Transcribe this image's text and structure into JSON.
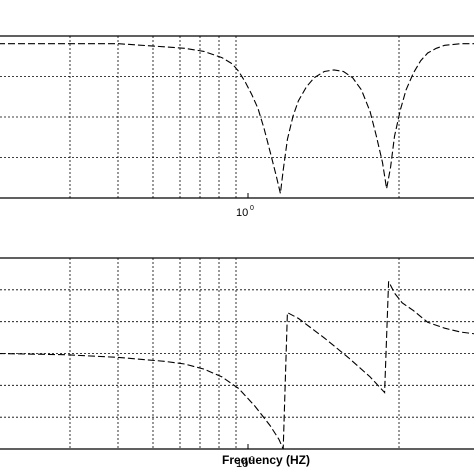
{
  "chart_data": [
    {
      "type": "line",
      "panel": "top",
      "xscale": "log",
      "xlim": [
        0.4,
        2.0
      ],
      "ylim": [
        -1.0,
        0.05
      ],
      "grid": true,
      "x_tick_label": {
        "base": "10",
        "exponent": "0"
      },
      "xlabel": "",
      "ylabel": "",
      "series": [
        {
          "x": [
            0.4,
            0.5,
            0.6,
            0.7,
            0.75,
            0.8,
            0.85,
            0.88,
            0.9,
            0.92,
            0.94,
            0.96,
            0.98,
            1.0,
            1.02,
            1.035,
            1.045,
            1.06,
            1.08,
            1.1,
            1.13,
            1.16,
            1.2,
            1.24,
            1.28,
            1.32,
            1.36,
            1.4,
            1.43,
            1.46,
            1.48,
            1.5,
            1.52,
            1.55,
            1.58,
            1.62,
            1.66,
            1.7,
            1.75,
            1.8,
            1.9,
            2.0
          ],
          "y": [
            0.0,
            0.0,
            0.0,
            -0.02,
            -0.03,
            -0.05,
            -0.09,
            -0.13,
            -0.18,
            -0.25,
            -0.33,
            -0.42,
            -0.55,
            -0.7,
            -0.85,
            -0.97,
            -0.82,
            -0.62,
            -0.47,
            -0.37,
            -0.28,
            -0.22,
            -0.18,
            -0.17,
            -0.18,
            -0.22,
            -0.3,
            -0.44,
            -0.6,
            -0.77,
            -0.94,
            -0.8,
            -0.6,
            -0.43,
            -0.3,
            -0.19,
            -0.11,
            -0.06,
            -0.03,
            -0.01,
            0.0,
            0.0
          ]
        }
      ]
    },
    {
      "type": "line",
      "panel": "bottom",
      "xscale": "log",
      "xlim": [
        0.4,
        2.0
      ],
      "ylim": [
        -4.0,
        0.9
      ],
      "grid": true,
      "x_tick_label": {
        "base": "10",
        "exponent": "0"
      },
      "xlabel": "Frequency (HZ)",
      "ylabel": "",
      "series": [
        {
          "x": [
            0.4,
            0.5,
            0.6,
            0.7,
            0.75,
            0.8,
            0.85,
            0.9,
            0.95,
            1.0,
            1.03,
            1.045,
            1.06,
            1.1,
            1.2,
            1.3,
            1.4,
            1.47,
            1.49,
            1.52,
            1.56,
            1.62,
            1.7,
            1.8,
            1.9,
            2.0
          ],
          "y": [
            -1.55,
            -1.58,
            -1.65,
            -1.75,
            -1.82,
            -1.95,
            -2.15,
            -2.45,
            -2.9,
            -3.4,
            -3.75,
            -4.0,
            -0.5,
            -0.65,
            -1.15,
            -1.65,
            -2.15,
            -2.55,
            0.3,
            0.0,
            -0.25,
            -0.45,
            -0.75,
            -0.9,
            -1.0,
            -1.05
          ]
        }
      ]
    }
  ]
}
